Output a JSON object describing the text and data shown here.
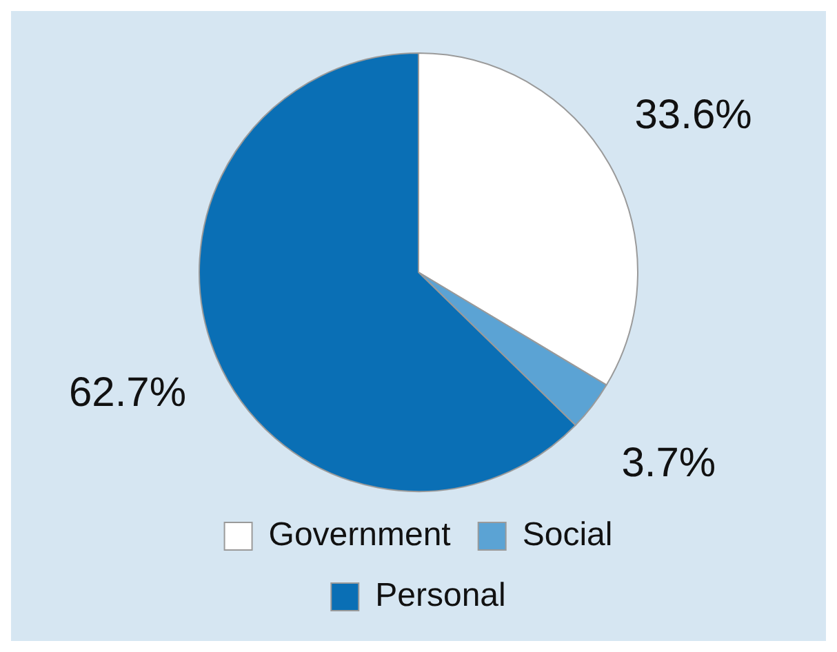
{
  "chart_data": {
    "type": "pie",
    "categories": [
      "Government",
      "Social",
      "Personal"
    ],
    "values": [
      33.6,
      3.7,
      62.7
    ],
    "colors": [
      "#ffffff",
      "#5ba3d4",
      "#0a6fb5"
    ],
    "value_labels": [
      "33.6%",
      "3.7%",
      "62.7%"
    ],
    "legend": "bottom"
  }
}
